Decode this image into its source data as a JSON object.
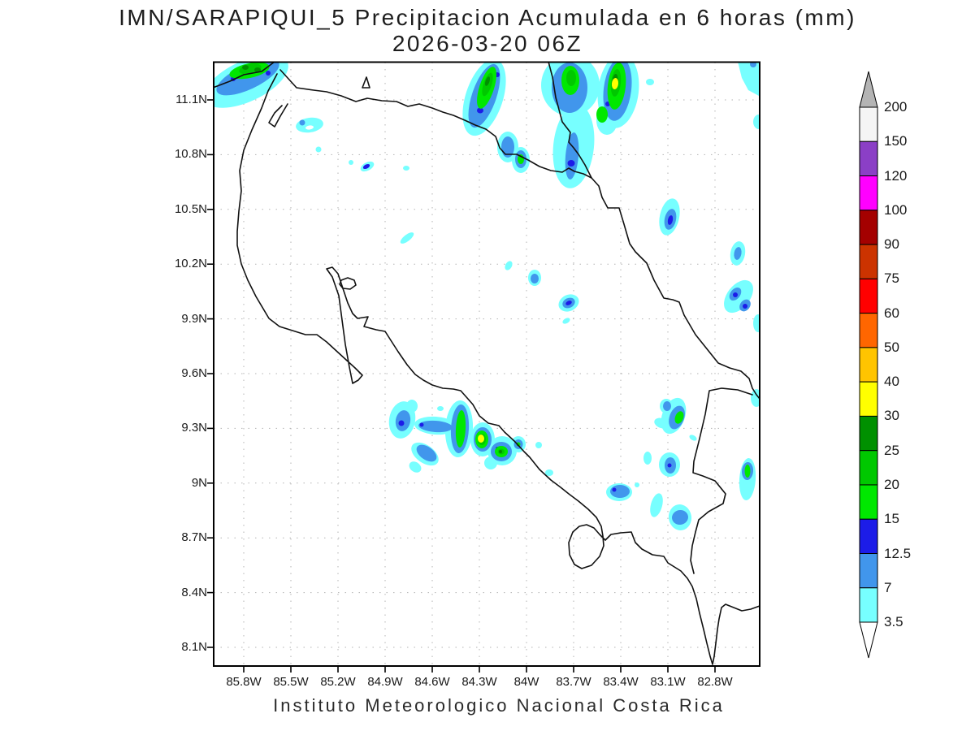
{
  "title": {
    "line1": "IMN/SARAPIQUI_5 Precipitacion Acumulada en 6 horas (mm)",
    "line2": "2026-03-20 06Z"
  },
  "caption": "Instituto Meteorologico Nacional Costa Rica",
  "axes": {
    "x_ticks": [
      "85.8W",
      "85.5W",
      "85.2W",
      "84.9W",
      "84.6W",
      "84.3W",
      "84W",
      "83.7W",
      "83.4W",
      "83.1W",
      "82.8W"
    ],
    "y_ticks": [
      "11.1N",
      "10.8N",
      "10.5N",
      "10.2N",
      "9.9N",
      "9.6N",
      "9.3N",
      "9N",
      "8.7N",
      "8.4N",
      "8.1N"
    ]
  },
  "colorbar": {
    "unit": "mm",
    "labels": [
      "200",
      "150",
      "120",
      "100",
      "90",
      "75",
      "60",
      "50",
      "40",
      "30",
      "25",
      "20",
      "15",
      "12.5",
      "7",
      "3.5"
    ],
    "segment_colors": [
      "#F5F5F5",
      "#8B3FC6",
      "#FF00FF",
      "#A40000",
      "#CC3300",
      "#FF0000",
      "#FF6600",
      "#FFC400",
      "#FFFF00",
      "#009000",
      "#00C800",
      "#00E800",
      "#1C1CE8",
      "#4196EC",
      "#77FFFF"
    ],
    "over_color": "#B4B4B4",
    "under_color": "#FFFFFF"
  },
  "palette": {
    "k35": "#77FFFF",
    "k7": "#4196EC",
    "k125": "#1C1CE8",
    "k15": "#00E800",
    "k20": "#00C800",
    "k25": "#009000",
    "k30": "#FFFF00"
  },
  "map_region": {
    "lat_range": [
      "8.1N",
      "11.1N"
    ],
    "lon_range": [
      "85.8W",
      "82.8W"
    ],
    "country": "Costa Rica"
  }
}
